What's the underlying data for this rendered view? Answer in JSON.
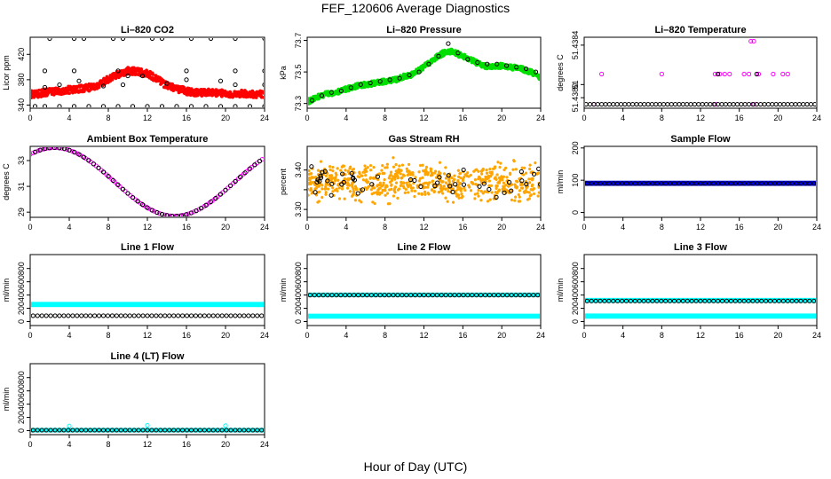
{
  "figure": {
    "title": "FEF_120606  Average Diagnostics",
    "xlabel": "Hour of Day (UTC)"
  },
  "colors": {
    "red": "#ff0000",
    "green": "#00e000",
    "magenta": "#ff00ff",
    "orange": "#ffa500",
    "blue": "#0000ff",
    "cyan": "#00ffff",
    "black": "#000000"
  },
  "chart_data": [
    {
      "id": "co2",
      "type": "scatter",
      "title": "Li–820 CO2",
      "ylabel": "Licor ppm",
      "xlim": [
        0,
        24
      ],
      "ylim": [
        335,
        447
      ],
      "xticks": [
        0,
        4,
        8,
        12,
        16,
        20,
        24
      ],
      "yticks": [
        340,
        380,
        420
      ],
      "ytick_labels": [
        "340",
        "380",
        "420"
      ],
      "series": [
        {
          "color": "#ff0000",
          "marker": "dense",
          "size": 1.9,
          "spread": 2,
          "values": [
            [
              0.1,
              357
            ],
            [
              1,
              358
            ],
            [
              2,
              361
            ],
            [
              3,
              362
            ],
            [
              4,
              364
            ],
            [
              5,
              366
            ],
            [
              6,
              367
            ],
            [
              7,
              372
            ],
            [
              8,
              382
            ],
            [
              9,
              388
            ],
            [
              10,
              394
            ],
            [
              11,
              393
            ],
            [
              12,
              390
            ],
            [
              13,
              380
            ],
            [
              14,
              370
            ],
            [
              15,
              366
            ],
            [
              16,
              362
            ],
            [
              17,
              360
            ],
            [
              18,
              360
            ],
            [
              19,
              359
            ],
            [
              20,
              358
            ],
            [
              21,
              358
            ],
            [
              22,
              358
            ],
            [
              23,
              357
            ],
            [
              24,
              357
            ]
          ]
        },
        {
          "color": "#000000",
          "marker": "ring",
          "values": [
            [
              0.5,
              338
            ],
            [
              1.5,
              338
            ],
            [
              3,
              338
            ],
            [
              4.5,
              338
            ],
            [
              6,
              338
            ],
            [
              7.5,
              338
            ],
            [
              9,
              338
            ],
            [
              10.5,
              338
            ],
            [
              12,
              338
            ],
            [
              13.5,
              338
            ],
            [
              15,
              338
            ],
            [
              16.5,
              338
            ],
            [
              18,
              338
            ],
            [
              19.5,
              338
            ],
            [
              21,
              338
            ],
            [
              22.5,
              338
            ],
            [
              24,
              338
            ],
            [
              2,
              445
            ],
            [
              4.5,
              445
            ],
            [
              5.5,
              445
            ],
            [
              8.5,
              445
            ],
            [
              9.5,
              445
            ],
            [
              12.5,
              445
            ],
            [
              13.5,
              445
            ],
            [
              16.5,
              445
            ],
            [
              18.5,
              445
            ],
            [
              21,
              445
            ],
            [
              24,
              445
            ],
            [
              1.5,
              394
            ],
            [
              4.5,
              394
            ],
            [
              9,
              394
            ],
            [
              16,
              394
            ],
            [
              21,
              394
            ],
            [
              24,
              394
            ],
            [
              1.5,
              368
            ],
            [
              3,
              372
            ],
            [
              5,
              378
            ],
            [
              7.5,
              370
            ],
            [
              9.5,
              372
            ],
            [
              10,
              386
            ],
            [
              11.5,
              386
            ],
            [
              14,
              374
            ],
            [
              16,
              380
            ],
            [
              19.5,
              378
            ],
            [
              21,
              372
            ],
            [
              24,
              372
            ]
          ]
        }
      ]
    },
    {
      "id": "pressure",
      "type": "scatter",
      "title": "Li–820 Pressure",
      "ylabel": "kPa",
      "xlim": [
        0,
        24
      ],
      "ylim": [
        73.27,
        73.72
      ],
      "xticks": [
        0,
        4,
        8,
        12,
        16,
        20,
        24
      ],
      "yticks": [
        73.3,
        73.5,
        73.7
      ],
      "ytick_labels": [
        "73.3",
        "73.5",
        "73.7"
      ],
      "series": [
        {
          "color": "#00e000",
          "marker": "dense",
          "size": 1.9,
          "spread": 1.4,
          "values": [
            [
              0,
              73.31
            ],
            [
              1,
              73.34
            ],
            [
              2,
              73.36
            ],
            [
              3,
              73.37
            ],
            [
              4,
              73.39
            ],
            [
              5,
              73.41
            ],
            [
              6,
              73.42
            ],
            [
              7,
              73.43
            ],
            [
              8,
              73.44
            ],
            [
              9,
              73.45
            ],
            [
              10,
              73.47
            ],
            [
              11,
              73.49
            ],
            [
              12,
              73.53
            ],
            [
              13,
              73.58
            ],
            [
              14,
              73.62
            ],
            [
              15,
              73.63
            ],
            [
              16,
              73.6
            ],
            [
              17,
              73.57
            ],
            [
              18,
              73.54
            ],
            [
              19,
              73.53
            ],
            [
              20,
              73.54
            ],
            [
              21,
              73.53
            ],
            [
              22,
              73.52
            ],
            [
              23,
              73.5
            ],
            [
              24,
              73.46
            ]
          ]
        },
        {
          "color": "#000000",
          "marker": "ring",
          "values": [
            [
              0.5,
              73.32
            ],
            [
              1.5,
              73.35
            ],
            [
              2.5,
              73.37
            ],
            [
              3.5,
              73.38
            ],
            [
              4.5,
              73.4
            ],
            [
              5.5,
              73.42
            ],
            [
              6.5,
              73.43
            ],
            [
              7.5,
              73.44
            ],
            [
              8.5,
              73.45
            ],
            [
              9.5,
              73.46
            ],
            [
              10.5,
              73.48
            ],
            [
              11.5,
              73.5
            ],
            [
              12.5,
              73.55
            ],
            [
              13.5,
              73.6
            ],
            [
              14.5,
              73.68
            ],
            [
              15.5,
              73.62
            ],
            [
              16.5,
              73.58
            ],
            [
              17.5,
              73.56
            ],
            [
              18.5,
              73.55
            ],
            [
              19.5,
              73.55
            ],
            [
              20.5,
              73.54
            ],
            [
              21.5,
              73.53
            ],
            [
              22.5,
              73.52
            ],
            [
              23.5,
              73.5
            ]
          ]
        }
      ]
    },
    {
      "id": "temperature",
      "type": "scatter",
      "title": "Li–820 Temperature",
      "ylabel": "degrees C",
      "xlim": [
        0,
        24
      ],
      "ylim": [
        51.43792,
        51.43846
      ],
      "xticks": [
        0,
        4,
        8,
        12,
        16,
        20,
        24
      ],
      "yticks": [
        51.438,
        51.4381,
        51.4384
      ],
      "ytick_labels": [
        "51.4380",
        "51",
        "51.4384"
      ],
      "series": [
        {
          "color": "#ff00ff",
          "marker": "ring",
          "values": [
            [
              1.8,
              51.43818
            ],
            [
              8,
              51.43818
            ],
            [
              13.5,
              51.43818
            ],
            [
              14,
              51.43818
            ],
            [
              14.5,
              51.43818
            ],
            [
              15,
              51.43818
            ],
            [
              16.5,
              51.43818
            ],
            [
              17,
              51.43818
            ],
            [
              18,
              51.43818
            ],
            [
              19.5,
              51.43818
            ],
            [
              20.5,
              51.43818
            ],
            [
              21,
              51.43818
            ],
            [
              17.2,
              51.43843
            ],
            [
              17.5,
              51.43843
            ],
            [
              1,
              51.43795
            ],
            [
              13.5,
              51.43795
            ],
            [
              17.5,
              51.43795
            ]
          ]
        },
        {
          "color": "#000000",
          "marker": "ring",
          "every": 0.4,
          "from": 0.2,
          "to": 23.8,
          "y": 51.43795,
          "extra": [
            [
              13.8,
              51.43818
            ],
            [
              17.8,
              51.43818
            ]
          ]
        }
      ]
    },
    {
      "id": "ambient",
      "type": "scatter",
      "title": "Ambient Box Temperature",
      "ylabel": "degrees C",
      "xlim": [
        0,
        24
      ],
      "ylim": [
        28.6,
        34.1
      ],
      "xticks": [
        0,
        4,
        8,
        12,
        16,
        20,
        24
      ],
      "yticks": [
        29,
        31,
        33
      ],
      "ytick_labels": [
        "29",
        "31",
        "33"
      ],
      "series": [
        {
          "color": "#ff00ff",
          "marker": "ring",
          "curve": "ambient",
          "every": 0.27,
          "from": 0,
          "to": 24
        },
        {
          "color": "#000000",
          "marker": "ring",
          "curve": "ambient",
          "every": 0.5,
          "from": 0.5,
          "to": 23.5
        }
      ]
    },
    {
      "id": "rh",
      "type": "scatter",
      "title": "Gas Stream RH",
      "ylabel": "percent",
      "xlim": [
        0,
        24
      ],
      "ylim": [
        3.28,
        3.46
      ],
      "xticks": [
        0,
        4,
        8,
        12,
        16,
        20,
        24
      ],
      "yticks": [
        3.3,
        3.35,
        3.4
      ],
      "ytick_labels": [
        "3.30",
        "",
        "3.40"
      ],
      "series": [
        {
          "color": "#ffa500",
          "marker": "noise",
          "center": 3.37,
          "amp": 0.035,
          "n": 700
        },
        {
          "color": "#000000",
          "marker": "noise-ring",
          "center": 3.37,
          "amp": 0.028,
          "n": 48
        }
      ]
    },
    {
      "id": "sample",
      "type": "scatter",
      "title": "Sample Flow",
      "ylabel": "ml/min",
      "xlim": [
        0,
        24
      ],
      "ylim": [
        -15,
        205
      ],
      "xticks": [
        0,
        4,
        8,
        12,
        16,
        20,
        24
      ],
      "yticks": [
        0,
        100,
        200
      ],
      "ytick_labels": [
        "0",
        "100",
        "200"
      ],
      "series": [
        {
          "color": "#0000ff",
          "marker": "band",
          "from": 0,
          "to": 24,
          "y0": 88,
          "y1": 93
        },
        {
          "color": "#000000",
          "marker": "ring",
          "every": 0.45,
          "from": 0.3,
          "to": 23.7,
          "y": 90
        }
      ]
    },
    {
      "id": "line1",
      "type": "scatter",
      "title": "Line 1 Flow",
      "ylabel": "ml/min",
      "xlim": [
        0,
        24
      ],
      "ylim": [
        -60,
        1010
      ],
      "xticks": [
        0,
        4,
        8,
        12,
        16,
        20,
        24
      ],
      "yticks": [
        0,
        200,
        400,
        600,
        800
      ],
      "ytick_labels": [
        "0",
        "200",
        "400",
        "600",
        "800"
      ],
      "series": [
        {
          "color": "#00ffff",
          "marker": "band",
          "from": 0,
          "to": 24,
          "y0": 245,
          "y1": 270
        },
        {
          "color": "#000000",
          "marker": "ring",
          "every": 0.45,
          "from": 0.3,
          "to": 23.7,
          "y": 88
        }
      ]
    },
    {
      "id": "line2",
      "type": "scatter",
      "title": "Line 2 Flow",
      "ylabel": "ml/min",
      "xlim": [
        0,
        24
      ],
      "ylim": [
        -60,
        1010
      ],
      "xticks": [
        0,
        4,
        8,
        12,
        16,
        20,
        24
      ],
      "yticks": [
        0,
        200,
        400,
        600,
        800
      ],
      "ytick_labels": [
        "0",
        "200",
        "400",
        "600",
        "800"
      ],
      "series": [
        {
          "color": "#00ffff",
          "marker": "band",
          "from": 0,
          "to": 24,
          "y0": 70,
          "y1": 92
        },
        {
          "color": "#00ffff",
          "marker": "band",
          "from": 0,
          "to": 24,
          "y0": 395,
          "y1": 410
        },
        {
          "color": "#000000",
          "marker": "ring",
          "every": 0.45,
          "from": 0.3,
          "to": 23.7,
          "y": 400
        }
      ]
    },
    {
      "id": "line3",
      "type": "scatter",
      "title": "Line 3 Flow",
      "ylabel": "ml/min",
      "xlim": [
        0,
        24
      ],
      "ylim": [
        -60,
        1010
      ],
      "xticks": [
        0,
        4,
        8,
        12,
        16,
        20,
        24
      ],
      "yticks": [
        0,
        200,
        400,
        600,
        800
      ],
      "ytick_labels": [
        "0",
        "200",
        "400",
        "600",
        "800"
      ],
      "series": [
        {
          "color": "#00ffff",
          "marker": "band",
          "from": 0,
          "to": 24,
          "y0": 70,
          "y1": 95
        },
        {
          "color": "#00ffff",
          "marker": "band",
          "from": 0,
          "to": 24,
          "y0": 310,
          "y1": 330
        },
        {
          "color": "#000000",
          "marker": "ring",
          "every": 0.45,
          "from": 0.3,
          "to": 23.7,
          "y": 310
        }
      ]
    },
    {
      "id": "line4",
      "type": "scatter",
      "title": "Line 4 (LT) Flow",
      "ylabel": "ml/min",
      "xlim": [
        0,
        24
      ],
      "ylim": [
        -60,
        1010
      ],
      "xticks": [
        0,
        4,
        8,
        12,
        16,
        20,
        24
      ],
      "yticks": [
        0,
        200,
        400,
        600,
        800
      ],
      "ytick_labels": [
        "0",
        "200",
        "400",
        "600",
        "800"
      ],
      "series": [
        {
          "color": "#00ffff",
          "marker": "band",
          "from": 0,
          "to": 24,
          "y0": 0,
          "y1": 15
        },
        {
          "color": "#00ffff",
          "marker": "ring",
          "values": [
            [
              4,
              70
            ],
            [
              12,
              80
            ],
            [
              20,
              75
            ],
            [
              0.2,
              5
            ]
          ]
        },
        {
          "color": "#000000",
          "marker": "ring",
          "every": 0.45,
          "from": 0.3,
          "to": 23.7,
          "y": 8
        }
      ]
    }
  ]
}
